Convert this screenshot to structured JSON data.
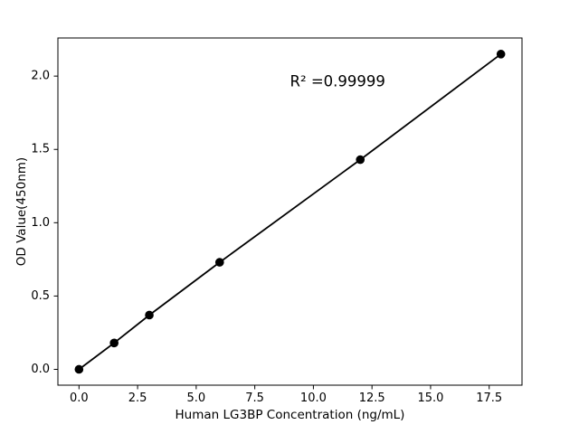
{
  "chart_data": {
    "type": "scatter",
    "subtype": "line-with-markers",
    "title": "",
    "xlabel": "Human LG3BP Concentration (ng/mL)",
    "ylabel": "OD Value(450nm)",
    "x": [
      0,
      1.5,
      3,
      6,
      12,
      18
    ],
    "y": [
      0.0,
      0.18,
      0.37,
      0.73,
      1.43,
      2.15
    ],
    "xlim": [
      -0.9,
      18.9
    ],
    "ylim": [
      -0.108,
      2.26
    ],
    "xticks": [
      0.0,
      2.5,
      5.0,
      7.5,
      10.0,
      12.5,
      15.0,
      17.5
    ],
    "xtick_labels": [
      "0.0",
      "2.5",
      "5.0",
      "7.5",
      "10.0",
      "12.5",
      "15.0",
      "17.5"
    ],
    "yticks": [
      0.0,
      0.5,
      1.0,
      1.5,
      2.0
    ],
    "ytick_labels": [
      "0.0",
      "0.5",
      "1.0",
      "1.5",
      "2.0"
    ],
    "grid": false,
    "legend": "none",
    "annotation": {
      "text": "R² =0.99999",
      "x": 9.0,
      "y": 1.93
    },
    "marker_color": "#000000",
    "line_color": "#000000",
    "spine_color": "#000000",
    "background_color": "#ffffff"
  }
}
